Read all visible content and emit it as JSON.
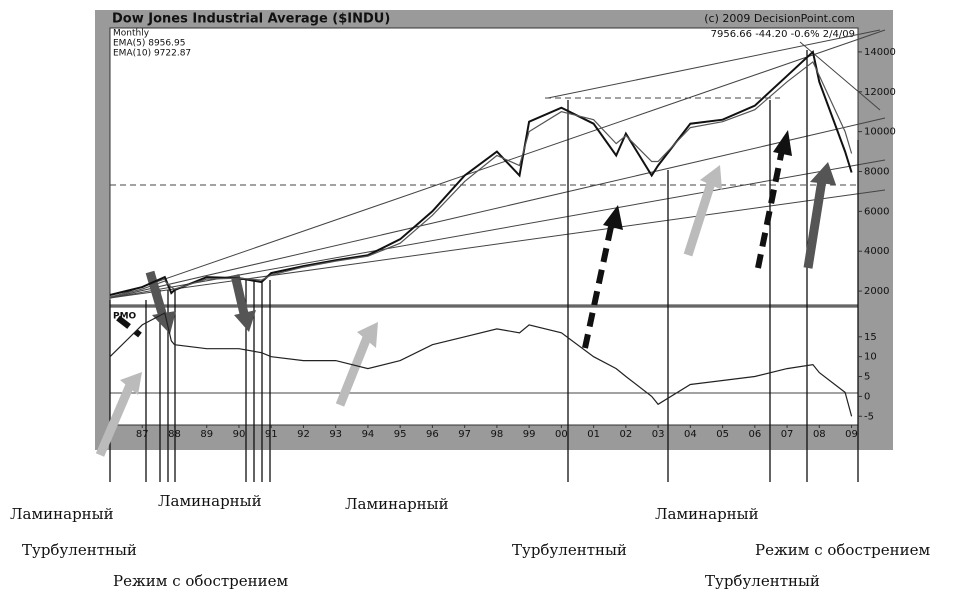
{
  "chart_data": {
    "type": "line",
    "title": "Dow Jones Industrial Average ($INDU)",
    "source": "(c) 2009 DecisionPoint.com",
    "last_quote": "7956.66 -44.20 -0.6% 2/4/09",
    "legend_texts": [
      "Monthly",
      "EMA(5) 8956.95",
      "EMA(10) 9722.87"
    ],
    "pmo_label": "PMO",
    "x": [
      1986,
      1987,
      1987.7,
      1987.9,
      1988,
      1989,
      1990,
      1990.7,
      1991,
      1992,
      1993,
      1994,
      1995,
      1996,
      1997,
      1998,
      1998.7,
      1999,
      2000,
      2001,
      2001.7,
      2002,
      2002.8,
      2003,
      2004,
      2005,
      2006,
      2007,
      2007.8,
      2008,
      2008.8,
      2009
    ],
    "series": [
      {
        "color": "#111111",
        "values": [
          1800,
          2200,
          2700,
          1900,
          2050,
          2700,
          2650,
          2450,
          2900,
          3250,
          3550,
          3800,
          4600,
          6000,
          7800,
          9000,
          7800,
          10500,
          11200,
          10400,
          8800,
          9900,
          7800,
          8300,
          10400,
          10600,
          11300,
          12800,
          14000,
          12500,
          9000,
          7950
        ]
      },
      {
        "color": "#555555",
        "values": [
          1700,
          2100,
          2500,
          2200,
          2100,
          2600,
          2650,
          2550,
          2800,
          3200,
          3500,
          3750,
          4400,
          5800,
          7500,
          8800,
          8300,
          10000,
          11000,
          10600,
          9400,
          9800,
          8500,
          8500,
          10200,
          10500,
          11100,
          12500,
          13500,
          12800,
          10000,
          8900
        ]
      },
      {
        "color": "#222222",
        "axis": "y2",
        "values": [
          10,
          18,
          21,
          14,
          13,
          12,
          12,
          11,
          10,
          9,
          9,
          7,
          9,
          13,
          15,
          17,
          16,
          18,
          16,
          10,
          7,
          5,
          0,
          -2,
          3,
          4,
          5,
          7,
          8,
          6,
          1,
          -5
        ]
      }
    ],
    "xlim": [
      1986,
      2009.2
    ],
    "xticks": [
      {
        "value": 1987,
        "label": "87"
      },
      {
        "value": 1988,
        "label": "88"
      },
      {
        "value": 1989,
        "label": "89"
      },
      1990,
      1991,
      1992,
      1993,
      1994,
      1995,
      1996,
      1997,
      1998,
      1999,
      {
        "value": 2000,
        "label": "00"
      },
      {
        "value": 2001,
        "label": "01"
      },
      {
        "value": 2002,
        "label": "02"
      },
      {
        "value": 2003,
        "label": "03"
      },
      {
        "value": 2004,
        "label": "04"
      },
      {
        "value": 2005,
        "label": "05"
      },
      {
        "value": 2006,
        "label": "06"
      },
      {
        "value": 2007,
        "label": "07"
      },
      {
        "value": 2008,
        "label": "08"
      },
      {
        "value": 2009,
        "label": "09"
      }
    ],
    "ylim": [
      1300,
      15200
    ],
    "yticks": [
      2000,
      4000,
      6000,
      8000,
      10000,
      12000,
      14000
    ],
    "y2lim": [
      -7.2,
      22.5
    ],
    "y2ticks": [
      -5,
      0,
      5,
      10,
      15
    ],
    "annotations": [
      "Ламинарный",
      "Ламинарный",
      "Ламинарный",
      "Ламинарный",
      "Турбулентный",
      "Турбулентный",
      "Турбулентный",
      "Режим с обострением",
      "Режим с обострением"
    ]
  }
}
